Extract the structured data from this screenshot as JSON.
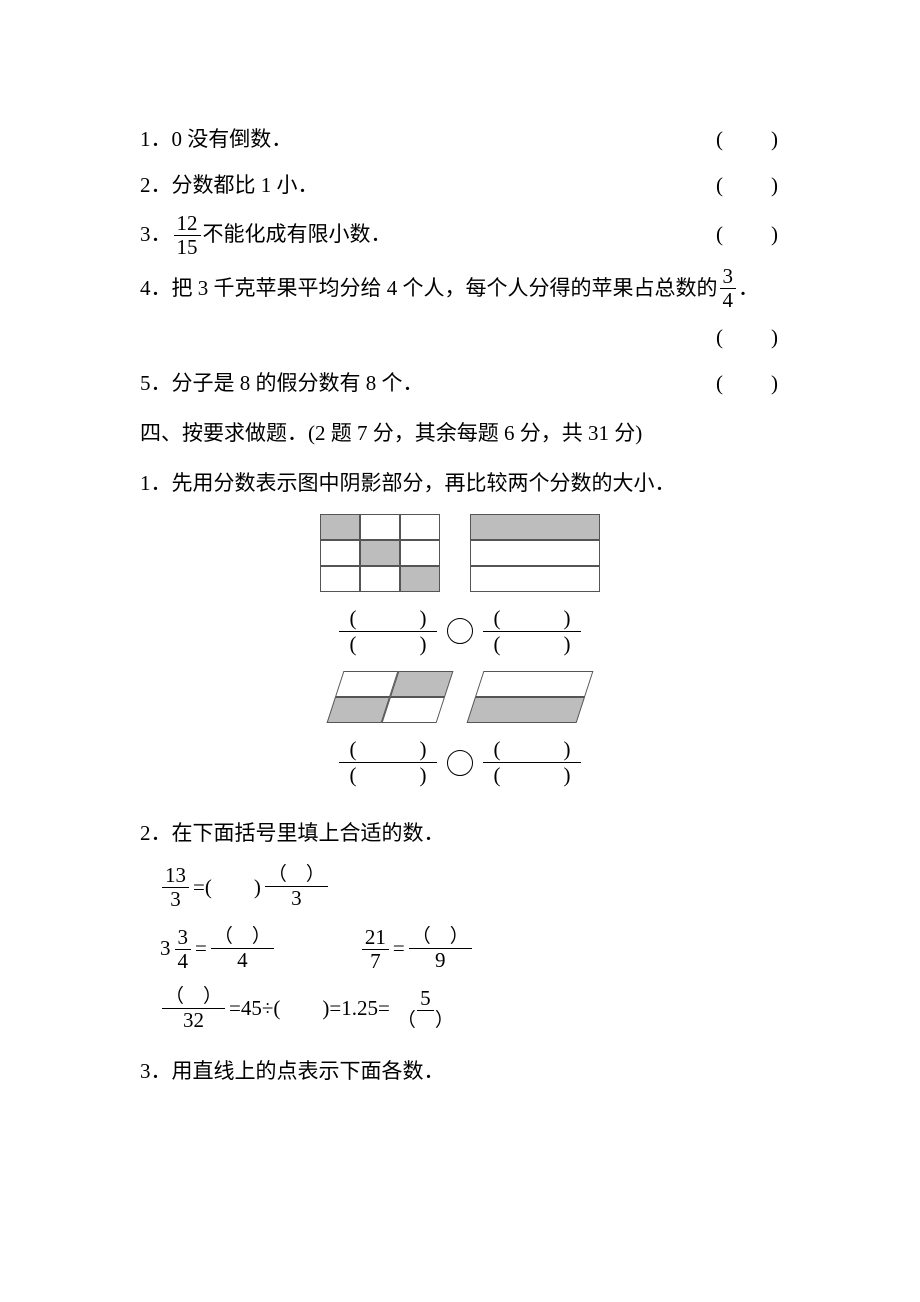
{
  "q1": {
    "num": "1．",
    "text": "0 没有倒数．",
    "slot": "(　　)"
  },
  "q2": {
    "num": "2．",
    "text": "分数都比 1 小．",
    "slot": "(　　)"
  },
  "q3": {
    "num": "3．",
    "frac_n": "12",
    "frac_d": "15",
    "tail": "不能化成有限小数．",
    "slot": "(　　)"
  },
  "q4": {
    "num": "4．",
    "text_a": "把 3 千克苹果平均分给 4 个人，每个人分得的苹果占总数的",
    "frac_n": "3",
    "frac_d": "4",
    "period": "．",
    "slot": "(　　)"
  },
  "q5": {
    "num": "5．",
    "text": "分子是 8 的假分数有 8 个．",
    "slot": "(　　)"
  },
  "sec4": "四、按要求做题．(2 题 7 分，其余每题 6 分，共 31 分)",
  "p1": "1．先用分数表示图中阴影部分，再比较两个分数的大小．",
  "blank_num": "(　　　)",
  "blank_den": "(　　　)",
  "p2": "2．在下面括号里填上合适的数．",
  "eq": {
    "a_n": "13",
    "a_d": "3",
    "a_mid": "=(　　)",
    "a_bn": "（　）",
    "a_bd": "3",
    "b_pre": "3",
    "b_n": "3",
    "b_d": "4",
    "b_eq": "=",
    "b_rn": "（　）",
    "b_rd": "4",
    "c_n": "21",
    "c_d": "7",
    "c_eq": "=",
    "c_rn": "（　）",
    "c_rd": "9",
    "d_ln": "（　）",
    "d_ld": "32",
    "d_mid": "=45÷(　　)=1.25=",
    "d_rn": "5",
    "d_rd": "（　）"
  },
  "p3": "3．用直线上的点表示下面各数．",
  "colors": {
    "shade": "#bdbdbd",
    "line": "#555555"
  }
}
